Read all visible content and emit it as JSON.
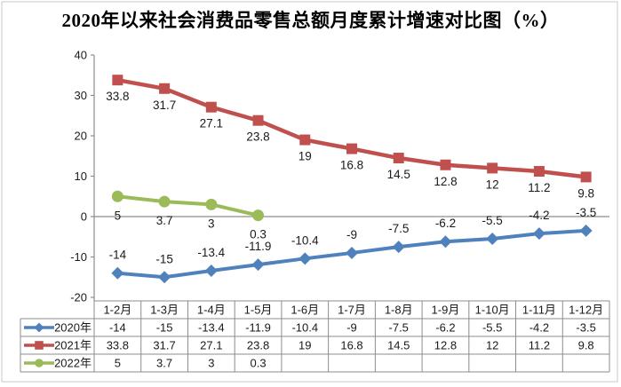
{
  "title": "2020年以来社会消费品零售总额月度累计增速对比图（%）",
  "colors": {
    "series_2020": "#4F81BD",
    "series_2021": "#C0504D",
    "series_2022": "#9BBB59",
    "axis": "#8c8c8c",
    "table_border": "#8c8c8c",
    "outer_border": "#c9c9c9",
    "text": "#1a1a1a"
  },
  "chart_data": {
    "type": "line",
    "title": "2020年以来社会消费品零售总额月度累计增速对比图（%）",
    "categories": [
      "1-2月",
      "1-3月",
      "1-4月",
      "1-5月",
      "1-6月",
      "1-7月",
      "1-8月",
      "1-9月",
      "1-10月",
      "1-11月",
      "1-12月"
    ],
    "series": [
      {
        "name": "2020年",
        "color": "#4F81BD",
        "marker": "diamond",
        "label_position": "above",
        "values": [
          -14,
          -15,
          -13.4,
          -11.9,
          -10.4,
          -9,
          -7.5,
          -6.2,
          -5.5,
          -4.2,
          -3.5
        ]
      },
      {
        "name": "2021年",
        "color": "#C0504D",
        "marker": "square",
        "label_position": "below",
        "values": [
          33.8,
          31.7,
          27.1,
          23.8,
          19,
          16.8,
          14.5,
          12.8,
          12,
          11.2,
          9.8
        ]
      },
      {
        "name": "2022年",
        "color": "#9BBB59",
        "marker": "circle",
        "label_position": "below",
        "values": [
          5,
          3.7,
          3,
          0.3,
          null,
          null,
          null,
          null,
          null,
          null,
          null
        ]
      }
    ],
    "ylim": [
      -20,
      40
    ],
    "yticks": [
      40,
      30,
      20,
      10,
      0,
      -10,
      -20
    ],
    "grid": false,
    "data_labels": true,
    "legend_position": "data-table-left",
    "xlabel": "",
    "ylabel": ""
  }
}
